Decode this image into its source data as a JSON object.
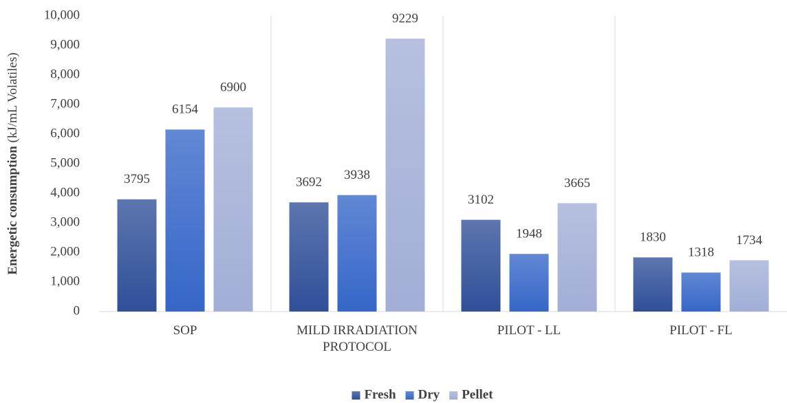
{
  "chart_data": {
    "type": "bar",
    "y_label": "Energetic consumption",
    "y_unit": "(kJ/mL Volatiles)",
    "categories": [
      "SOP",
      "MILD IRRADIATION PROTOCOL",
      "PILOT - LL",
      "PILOT - FL"
    ],
    "series": [
      {
        "name": "Fresh",
        "color": "#2f4f98",
        "values": [
          3795,
          3692,
          3102,
          1830
        ]
      },
      {
        "name": "Dry",
        "color": "#3566c8",
        "values": [
          6154,
          3938,
          1948,
          1318
        ]
      },
      {
        "name": "Pellet",
        "color": "#a2aed6",
        "values": [
          6900,
          9229,
          3665,
          1734
        ]
      }
    ],
    "ylim": [
      0,
      10000
    ],
    "yticks": [
      0,
      {
        "value": 1000,
        "label": "1,000"
      },
      {
        "value": 2000,
        "label": "2,000"
      },
      {
        "value": 3000,
        "label": "3,000"
      },
      {
        "value": 4000,
        "label": "4,000"
      },
      {
        "value": 5000,
        "label": "5,000"
      },
      {
        "value": 6000,
        "label": "6,000"
      },
      {
        "value": 7000,
        "label": "7,000"
      },
      {
        "value": 8000,
        "label": "8,000"
      },
      {
        "value": 9000,
        "label": "9,000"
      },
      {
        "value": 10000,
        "label": "10,000"
      }
    ],
    "legend": "bottom"
  }
}
